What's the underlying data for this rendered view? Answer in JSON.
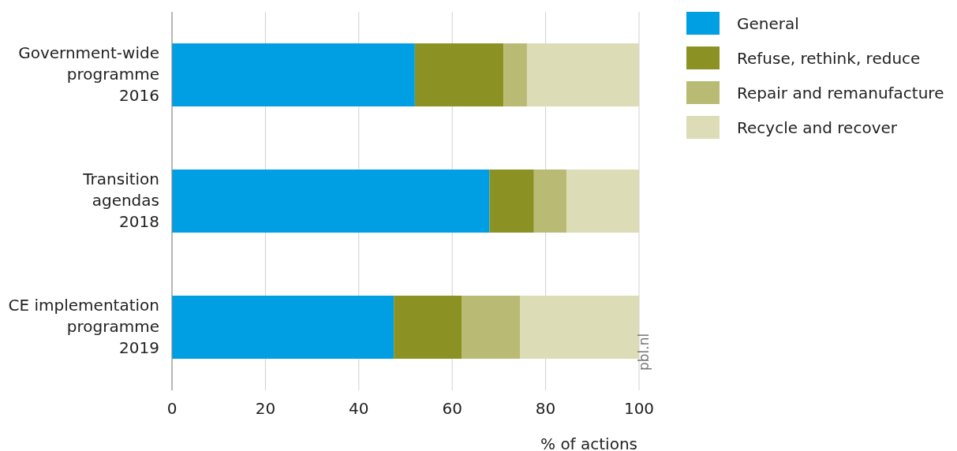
{
  "chart_data": {
    "type": "bar",
    "orientation": "horizontal",
    "stacked": true,
    "categories": [
      "Government-wide\nprogramme\n2016",
      "Transition\nagendas\n2018",
      "CE implementation\nprogramme\n2019"
    ],
    "series": [
      {
        "name": "General",
        "color": "#009fe3",
        "values": [
          52,
          68,
          47.5
        ]
      },
      {
        "name": "Refuse, rethink, reduce",
        "color": "#8c9123",
        "values": [
          19,
          9.5,
          14.5
        ]
      },
      {
        "name": "Repair and remanufacture",
        "color": "#b9bb74",
        "values": [
          5,
          7,
          12.5
        ]
      },
      {
        "name": "Recycle and recover",
        "color": "#dcdcb6",
        "values": [
          24,
          15.5,
          25.5
        ]
      }
    ],
    "xlabel": "% of actions",
    "xlim": [
      0,
      100
    ],
    "xticks": [
      0,
      20,
      40,
      60,
      80,
      100
    ],
    "grid": "x",
    "legend": "right",
    "annotations": [
      "pbl.nl"
    ]
  }
}
